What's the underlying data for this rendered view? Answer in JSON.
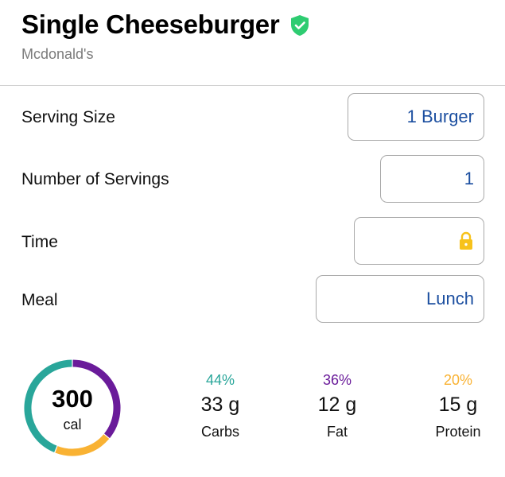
{
  "food": {
    "title": "Single Cheeseburger",
    "brand": "Mcdonald's",
    "verified_icon": "verified-check-icon",
    "verified_color": "#2ecc71"
  },
  "fields": [
    {
      "label": "Serving Size",
      "value": "1 Burger"
    },
    {
      "label": "Number of Servings",
      "value": "1"
    },
    {
      "label": "Time",
      "value": "",
      "icon": "lock-icon",
      "icon_color": "#f7c21b"
    },
    {
      "label": "Meal",
      "value": "Lunch"
    }
  ],
  "summary": {
    "calories": "300",
    "calories_unit": "cal",
    "macros": [
      {
        "percent": "44%",
        "grams": "33 g",
        "name": "Carbs",
        "color": "#29a69a",
        "fraction": 0.44
      },
      {
        "percent": "36%",
        "grams": "12 g",
        "name": "Fat",
        "color": "#6a1b9a",
        "fraction": 0.36
      },
      {
        "percent": "20%",
        "grams": "15 g",
        "name": "Protein",
        "color": "#f9b233",
        "fraction": 0.2
      }
    ]
  }
}
